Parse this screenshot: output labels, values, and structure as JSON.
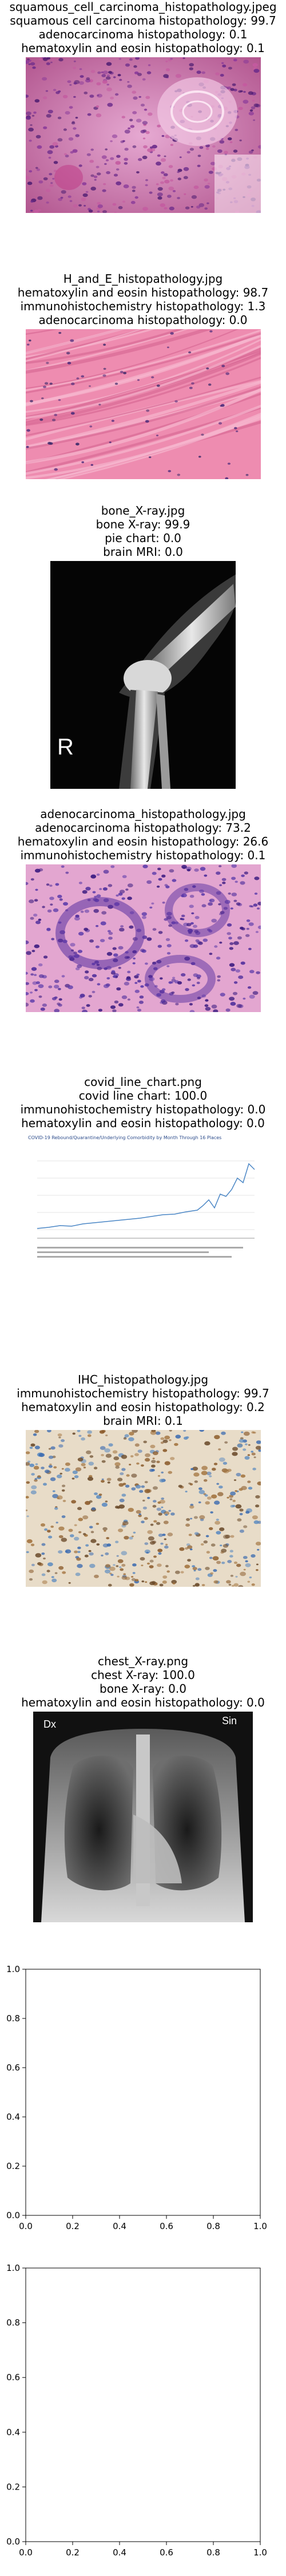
{
  "panels": [
    {
      "title": "squamous_cell_carcinoma_histopathology.jpeg",
      "scores": [
        "squamous cell carcinoma histopathology: 99.7",
        "adenocarcinoma histopathology: 0.1",
        "hematoxylin and eosin histopathology: 0.1"
      ]
    },
    {
      "title": "H_and_E_histopathology.jpg",
      "scores": [
        "hematoxylin and eosin histopathology: 98.7",
        "immunohistochemistry histopathology: 1.3",
        "adenocarcinoma histopathology: 0.0"
      ]
    },
    {
      "title": "bone_X-ray.jpg",
      "scores": [
        "bone X-ray: 99.9",
        "pie chart: 0.0",
        "brain MRI: 0.0"
      ],
      "overlay_letter": "R"
    },
    {
      "title": "adenocarcinoma_histopathology.jpg",
      "scores": [
        "adenocarcinoma histopathology: 73.2",
        "hematoxylin and eosin histopathology: 26.6",
        "immunohistochemistry histopathology: 0.1"
      ]
    },
    {
      "title": "covid_line_chart.png",
      "scores": [
        "covid line chart: 100.0",
        "immunohistochemistry histopathology: 0.0",
        "hematoxylin and eosin histopathology: 0.0"
      ],
      "thumbnail_title": "COVID-19 Rebound/Quarantine/Underlying Comorbidity by Month Through 16 Places"
    },
    {
      "title": "IHC_histopathology.jpg",
      "scores": [
        "immunohistochemistry histopathology: 99.7",
        "hematoxylin and eosin histopathology: 0.2",
        "brain MRI: 0.1"
      ]
    },
    {
      "title": "chest_X-ray.png",
      "scores": [
        "chest X-ray: 100.0",
        "bone X-ray: 0.0",
        "hematoxylin and eosin histopathology: 0.0"
      ],
      "overlay_left": "Dx",
      "overlay_right": "Sin"
    }
  ],
  "empty_axes": [
    {
      "xticks": [
        "0.0",
        "0.2",
        "0.4",
        "0.6",
        "0.8",
        "1.0"
      ],
      "yticks": [
        "0.0",
        "0.2",
        "0.4",
        "0.6",
        "0.8",
        "1.0"
      ]
    },
    {
      "xticks": [
        "0.0",
        "0.2",
        "0.4",
        "0.6",
        "0.8",
        "1.0"
      ],
      "yticks": [
        "0.0",
        "0.2",
        "0.4",
        "0.6",
        "0.8",
        "1.0"
      ]
    }
  ],
  "chart_data": [
    {
      "type": "table",
      "title": "squamous_cell_carcinoma_histopathology.jpeg",
      "categories": [
        "squamous cell carcinoma histopathology",
        "adenocarcinoma histopathology",
        "hematoxylin and eosin histopathology"
      ],
      "values": [
        99.7,
        0.1,
        0.1
      ]
    },
    {
      "type": "table",
      "title": "H_and_E_histopathology.jpg",
      "categories": [
        "hematoxylin and eosin histopathology",
        "immunohistochemistry histopathology",
        "adenocarcinoma histopathology"
      ],
      "values": [
        98.7,
        1.3,
        0.0
      ]
    },
    {
      "type": "table",
      "title": "bone_X-ray.jpg",
      "categories": [
        "bone X-ray",
        "pie chart",
        "brain MRI"
      ],
      "values": [
        99.9,
        0.0,
        0.0
      ]
    },
    {
      "type": "table",
      "title": "adenocarcinoma_histopathology.jpg",
      "categories": [
        "adenocarcinoma histopathology",
        "hematoxylin and eosin histopathology",
        "immunohistochemistry histopathology"
      ],
      "values": [
        73.2,
        26.6,
        0.1
      ]
    },
    {
      "type": "table",
      "title": "covid_line_chart.png",
      "categories": [
        "covid line chart",
        "immunohistochemistry histopathology",
        "hematoxylin and eosin histopathology"
      ],
      "values": [
        100.0,
        0.0,
        0.0
      ]
    },
    {
      "type": "table",
      "title": "IHC_histopathology.jpg",
      "categories": [
        "immunohistochemistry histopathology",
        "hematoxylin and eosin histopathology",
        "brain MRI"
      ],
      "values": [
        99.7,
        0.2,
        0.1
      ]
    },
    {
      "type": "table",
      "title": "chest_X-ray.png",
      "categories": [
        "chest X-ray",
        "bone X-ray",
        "hematoxylin and eosin histopathology"
      ],
      "values": [
        100.0,
        0.0,
        0.0
      ]
    },
    {
      "type": "scatter",
      "x": [],
      "y": [],
      "xlim": [
        0,
        1
      ],
      "ylim": [
        0,
        1
      ],
      "grid": false
    },
    {
      "type": "scatter",
      "x": [],
      "y": [],
      "xlim": [
        0,
        1
      ],
      "ylim": [
        0,
        1
      ],
      "grid": false
    }
  ]
}
